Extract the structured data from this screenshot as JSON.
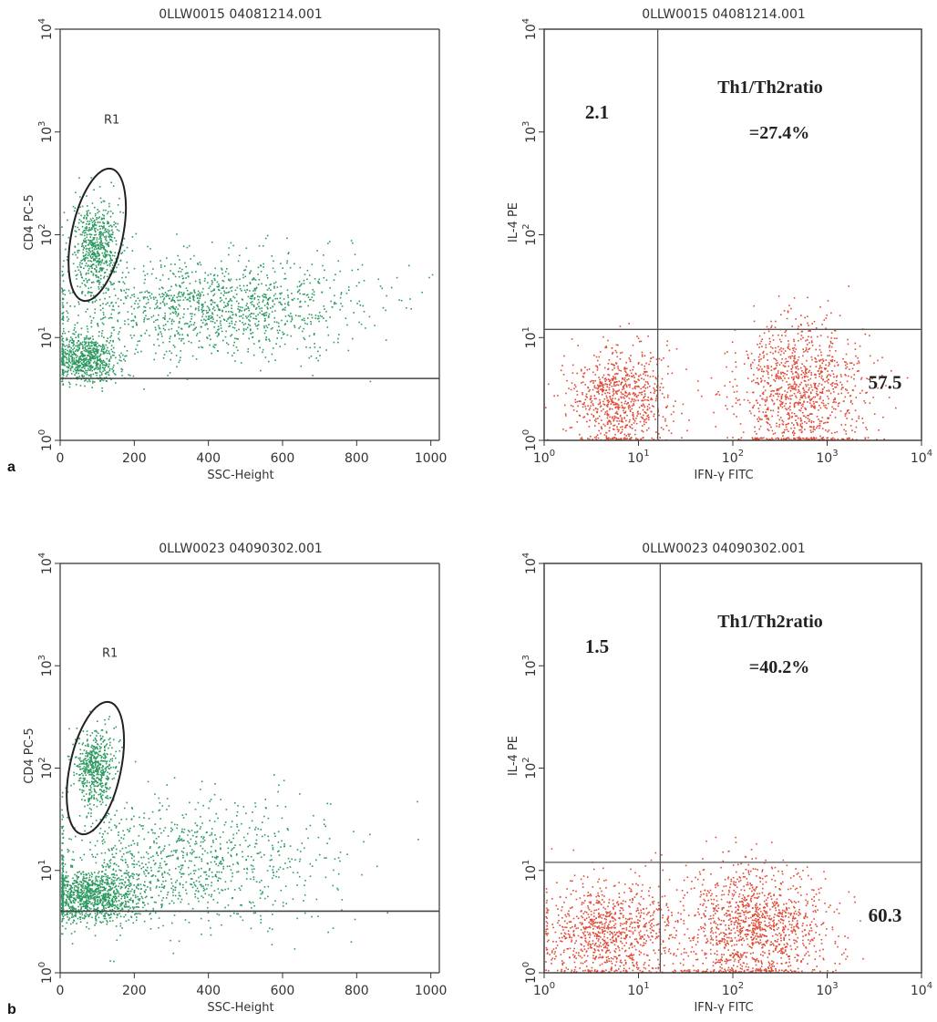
{
  "panels": [
    {
      "letter": "a",
      "left_title": "0LLW0015 04081214.001",
      "right_title": "0LLW0015 04081214.001"
    },
    {
      "letter": "b",
      "left_title": "0LLW0023 04090302.001",
      "right_title": "0LLW0023 04090302.001"
    }
  ],
  "chart_data": [
    {
      "type": "scatter",
      "panel": "a",
      "title": "0LLW0015 04081214.001",
      "xlabel": "SSC-Height",
      "ylabel": "CD4 PC-5",
      "x_scale": "linear",
      "y_scale": "log",
      "xlim": [
        0,
        1023
      ],
      "ylim": [
        1,
        10000
      ],
      "x_ticks": [
        "0",
        "200",
        "400",
        "600",
        "800",
        "1000"
      ],
      "y_ticks": [
        "10^0",
        "10^1",
        "10^2",
        "10^3",
        "10^4"
      ],
      "point_color": "#2e9a62",
      "gate": {
        "label": "R1",
        "shape": "ellipse",
        "center": {
          "x": 100,
          "y": 100
        }
      },
      "threshold_y": 4,
      "clusters": [
        {
          "x_center": 95,
          "x_spread": 30,
          "log_y_center": 1.9,
          "log_y_spread": 0.22,
          "n": 600
        },
        {
          "x_center": 70,
          "x_spread": 45,
          "log_y_center": 0.8,
          "log_y_spread": 0.12,
          "n": 700
        },
        {
          "x_center": 420,
          "x_spread": 200,
          "log_y_center": 1.3,
          "log_y_spread": 0.25,
          "n": 1300
        }
      ]
    },
    {
      "type": "scatter",
      "panel": "a",
      "title": "0LLW0015 04081214.001",
      "xlabel": "IFN-γ FITC",
      "ylabel": "IL-4 PE",
      "x_scale": "log",
      "y_scale": "log",
      "xlim": [
        1,
        10000
      ],
      "ylim": [
        1,
        10000
      ],
      "x_ticks": [
        "10^0",
        "10^1",
        "10^2",
        "10^3",
        "10^4"
      ],
      "y_ticks": [
        "10^0",
        "10^1",
        "10^2",
        "10^3",
        "10^4"
      ],
      "point_color": "#e04a36",
      "quadrant_x": 16,
      "quadrant_y": 12,
      "quadrant_values": {
        "upper_left": "2.1",
        "lower_right": "57.5"
      },
      "ratio_lines": [
        "Th1/Th2ratio",
        "=27.4%"
      ],
      "clusters": [
        {
          "log_x_center": 0.8,
          "log_x_spread": 0.25,
          "log_y_center": 0.4,
          "log_y_spread": 0.25,
          "n": 800
        },
        {
          "log_x_center": 2.7,
          "log_x_spread": 0.35,
          "log_y_center": 0.5,
          "log_y_spread": 0.33,
          "n": 1100
        }
      ]
    },
    {
      "type": "scatter",
      "panel": "b",
      "title": "0LLW0023 04090302.001",
      "xlabel": "SSC-Height",
      "ylabel": "CD4 PC-5",
      "x_scale": "linear",
      "y_scale": "log",
      "xlim": [
        0,
        1023
      ],
      "ylim": [
        1,
        10000
      ],
      "x_ticks": [
        "0",
        "200",
        "400",
        "600",
        "800",
        "1000"
      ],
      "y_ticks": [
        "10^0",
        "10^1",
        "10^2",
        "10^3",
        "10^4"
      ],
      "point_color": "#2e9a62",
      "gate": {
        "label": "R1",
        "shape": "ellipse",
        "center": {
          "x": 95,
          "y": 100
        }
      },
      "threshold_y": 4,
      "clusters": [
        {
          "x_center": 95,
          "x_spread": 28,
          "log_y_center": 2.0,
          "log_y_spread": 0.2,
          "n": 550
        },
        {
          "x_center": 80,
          "x_spread": 70,
          "log_y_center": 0.75,
          "log_y_spread": 0.13,
          "n": 1100
        },
        {
          "x_center": 330,
          "x_spread": 200,
          "log_y_center": 1.1,
          "log_y_spread": 0.3,
          "n": 1000
        }
      ]
    },
    {
      "type": "scatter",
      "panel": "b",
      "title": "0LLW0023 04090302.001",
      "xlabel": "IFN-γ FITC",
      "ylabel": "IL-4 PE",
      "x_scale": "log",
      "y_scale": "log",
      "xlim": [
        1,
        10000
      ],
      "ylim": [
        1,
        10000
      ],
      "x_ticks": [
        "10^0",
        "10^1",
        "10^2",
        "10^3",
        "10^4"
      ],
      "y_ticks": [
        "10^0",
        "10^1",
        "10^2",
        "10^3",
        "10^4"
      ],
      "point_color": "#e04a36",
      "quadrant_x": 17,
      "quadrant_y": 12,
      "quadrant_values": {
        "upper_left": "1.5",
        "lower_right": "60.3"
      },
      "ratio_lines": [
        "Th1/Th2ratio",
        "=40.2%"
      ],
      "clusters": [
        {
          "log_x_center": 0.65,
          "log_x_spread": 0.35,
          "log_y_center": 0.4,
          "log_y_spread": 0.25,
          "n": 900
        },
        {
          "log_x_center": 2.2,
          "log_x_spread": 0.4,
          "log_y_center": 0.45,
          "log_y_spread": 0.3,
          "n": 1300
        }
      ]
    }
  ]
}
